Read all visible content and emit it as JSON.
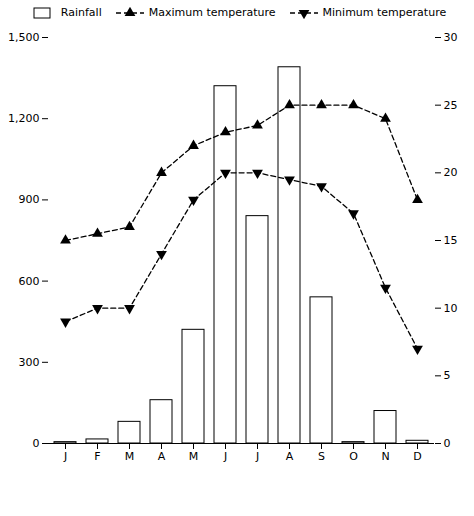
{
  "chart_data": {
    "type": "bar",
    "categories": [
      "J",
      "F",
      "M",
      "A",
      "M",
      "J",
      "J",
      "A",
      "S",
      "O",
      "N",
      "D"
    ],
    "series": [
      {
        "name": "Rainfall",
        "type": "bar",
        "color": "white",
        "values": [
          5,
          15,
          80,
          160,
          420,
          1320,
          840,
          1390,
          540,
          5,
          120,
          10
        ]
      },
      {
        "name": "Maximum temperature",
        "type": "line",
        "axis": "y2",
        "color": "black",
        "marker": "triangle-up",
        "line_style": "dashed",
        "values": [
          15,
          15.5,
          16,
          20,
          22,
          23,
          23.5,
          25,
          25,
          25,
          24,
          18
        ]
      },
      {
        "name": "Minimum temperature",
        "type": "line",
        "axis": "y2",
        "color": "black",
        "marker": "triangle-down",
        "line_style": "dashed",
        "values": [
          9,
          10,
          10,
          14,
          18,
          20,
          20,
          19.5,
          19,
          17,
          11.5,
          7
        ]
      }
    ],
    "ylim": [
      0,
      1500
    ],
    "yticks": [
      0,
      300,
      600,
      900,
      1200,
      1500
    ],
    "y2lim": [
      0,
      30
    ],
    "y2ticks": [
      0,
      5,
      10,
      15,
      20,
      25,
      30
    ],
    "legend": "top",
    "grid": false
  }
}
